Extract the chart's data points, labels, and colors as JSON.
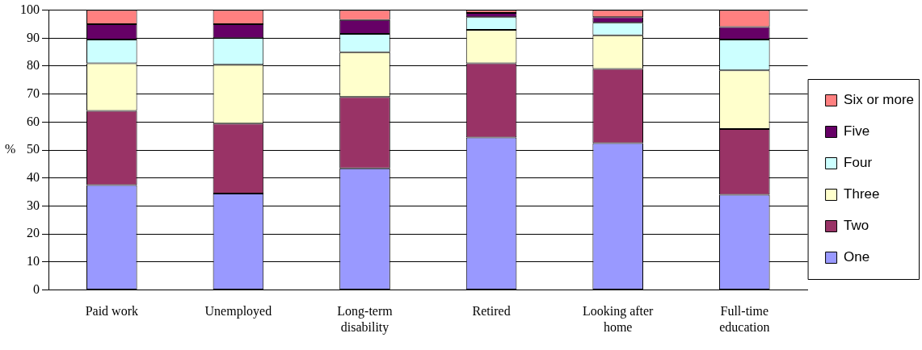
{
  "chart_data": {
    "type": "bar",
    "stacked": true,
    "ylabel": "%",
    "categories": [
      "Paid work",
      "Unemployed",
      "Long-term disability",
      "Retired",
      "Looking after home",
      "Full-time education"
    ],
    "series": [
      {
        "name": "One",
        "color": "#9999ff",
        "values": [
          37.5,
          34.5,
          43.5,
          54.5,
          52.5,
          34
        ]
      },
      {
        "name": "Two",
        "color": "#993366",
        "values": [
          26.5,
          25,
          25.5,
          26.5,
          26.5,
          23.5
        ]
      },
      {
        "name": "Three",
        "color": "#ffffcc",
        "values": [
          17,
          21,
          16,
          12,
          12,
          21
        ]
      },
      {
        "name": "Four",
        "color": "#ccffff",
        "values": [
          8.5,
          9.5,
          6.5,
          4.5,
          4.5,
          11
        ]
      },
      {
        "name": "Five",
        "color": "#660066",
        "values": [
          5.5,
          5,
          5,
          1.5,
          2,
          4.5
        ]
      },
      {
        "name": "Six or more",
        "color": "#ff8080",
        "values": [
          5,
          5,
          3.5,
          1,
          2.5,
          6
        ]
      }
    ],
    "ylim": [
      0,
      100
    ],
    "yticks": [
      0,
      10,
      20,
      30,
      40,
      50,
      60,
      70,
      80,
      90,
      100
    ],
    "grid": "y",
    "legend": "right"
  }
}
